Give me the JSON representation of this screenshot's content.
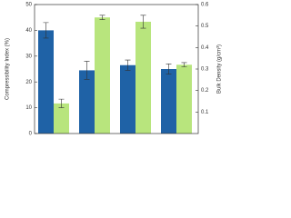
{
  "chart_data": {
    "type": "bar",
    "categories": [
      null,
      null,
      null,
      null
    ],
    "ylabel": "Compressibility Index (%)",
    "y2label": "Bulk Density (g/cm³)",
    "ylim": [
      0,
      50
    ],
    "yticks": [
      0,
      10,
      20,
      30,
      40,
      50
    ],
    "y2lim": [
      0,
      0.6
    ],
    "y2ticks": [
      0.1,
      0.2,
      0.3,
      0.4,
      0.5,
      0.6
    ],
    "series": [
      {
        "name": "Compressibility Index (%)",
        "color": "#1f62a6",
        "values": [
          40,
          24.5,
          26.5,
          25
        ],
        "errors": [
          3,
          3.5,
          2,
          2
        ]
      },
      {
        "name": "Bulk Density (g/cm³)",
        "color": "#b8e57d",
        "axis": "y2",
        "values": [
          0.14,
          0.54,
          0.52,
          0.32
        ],
        "errors": [
          0.02,
          0.01,
          0.03,
          0.01
        ]
      }
    ]
  }
}
